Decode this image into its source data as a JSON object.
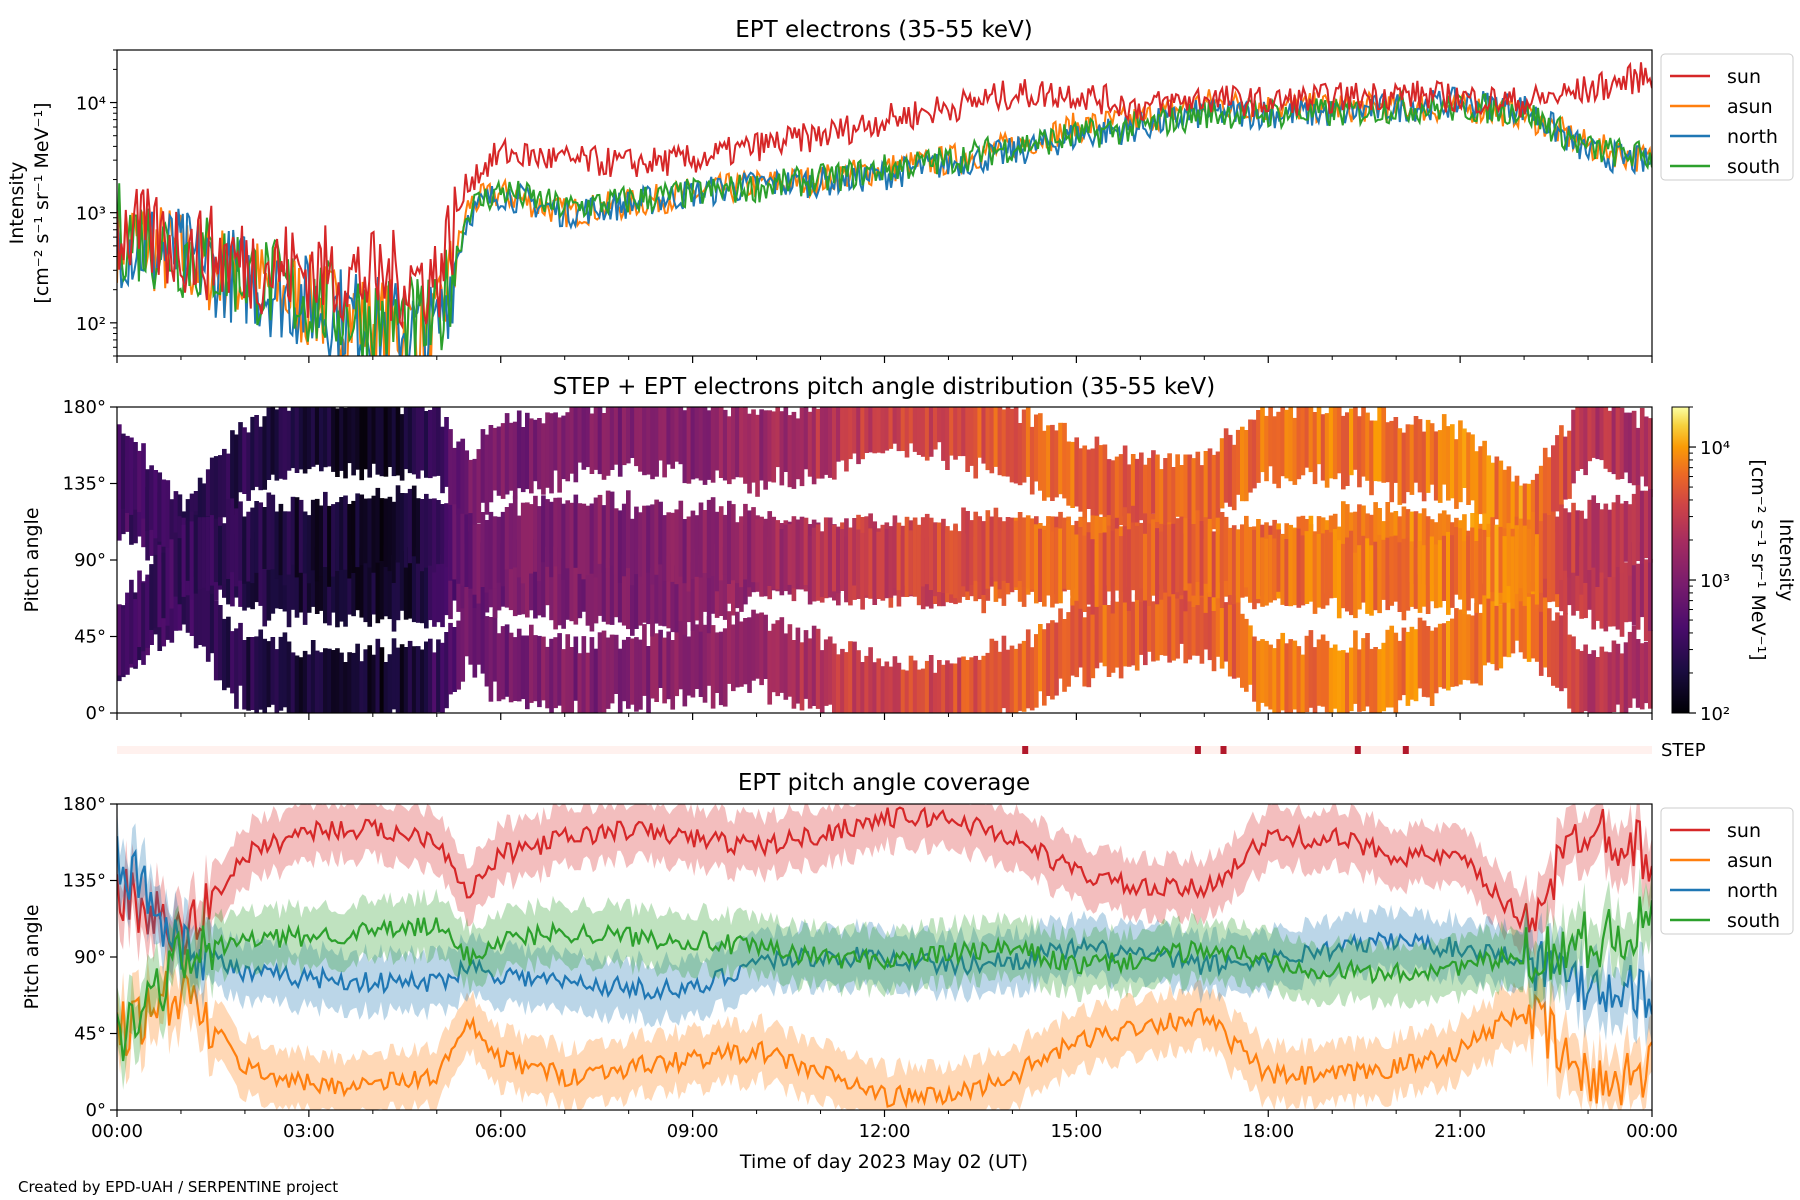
{
  "credit": "Created by EPD-UAH / SERPENTINE project",
  "colors": {
    "sun": "#d62728",
    "asun": "#ff7f0e",
    "north": "#1f77b4",
    "south": "#2ca02c",
    "step_marker": "#b2182b",
    "step_band": "#fff1ee"
  },
  "panels": {
    "intensity": {
      "title": "EPT electrons (35-55 keV)",
      "ylabel_line1": "Intensity",
      "ylabel_line2": "[cm⁻² s⁻¹ sr⁻¹ MeV⁻¹]",
      "yticks": [
        {
          "label": "10²"
        },
        {
          "label": "10³"
        },
        {
          "label": "10⁴"
        }
      ]
    },
    "pad": {
      "title": "STEP + EPT electrons pitch angle distribution (35-55 keV)",
      "ylabel": "Pitch angle",
      "yticks": [
        "0°",
        "45°",
        "90°",
        "135°",
        "180°"
      ],
      "colorbar": {
        "label_line1": "Intensity",
        "label_line2": "[cm⁻² s⁻¹ sr⁻¹ MeV⁻¹]",
        "ticks": [
          "10²",
          "10³",
          "10⁴"
        ]
      }
    },
    "step": {
      "label": "STEP"
    },
    "coverage": {
      "title": "EPT pitch angle coverage",
      "ylabel": "Pitch angle",
      "yticks": [
        "0°",
        "45°",
        "90°",
        "135°",
        "180°"
      ],
      "xlabel": "Time of day 2023 May 02 (UT)",
      "xticks": [
        "00:00",
        "03:00",
        "06:00",
        "09:00",
        "12:00",
        "15:00",
        "18:00",
        "21:00",
        "00:00"
      ]
    }
  },
  "legend": [
    {
      "key": "sun",
      "label": "sun"
    },
    {
      "key": "asun",
      "label": "asun"
    },
    {
      "key": "north",
      "label": "north"
    },
    {
      "key": "south",
      "label": "south"
    }
  ],
  "chart_data": [
    {
      "type": "line",
      "title": "EPT electrons (35-55 keV)",
      "xlabel": "",
      "ylabel": "Intensity [cm⁻² s⁻¹ sr⁻¹ MeV⁻¹]",
      "yscale": "log",
      "ylim": [
        50,
        30000
      ],
      "xlim_hours": [
        0,
        24
      ],
      "legend_position": "outside-right",
      "x_hours": [
        0,
        1,
        2,
        3,
        4,
        5,
        5.5,
        6,
        7,
        8,
        9,
        10,
        11,
        12,
        13,
        14,
        15,
        16,
        17,
        18,
        19,
        20,
        21,
        22,
        23,
        24
      ],
      "series": [
        {
          "name": "sun",
          "values": [
            700,
            500,
            350,
            300,
            250,
            250,
            2000,
            3500,
            3000,
            2800,
            3000,
            4000,
            5000,
            7000,
            9000,
            12000,
            12000,
            9000,
            11000,
            10000,
            11000,
            12000,
            11000,
            10000,
            13000,
            18000
          ]
        },
        {
          "name": "asun",
          "values": [
            650,
            400,
            250,
            150,
            100,
            80,
            1200,
            1500,
            1000,
            1200,
            1500,
            1800,
            2000,
            2500,
            3000,
            4000,
            6000,
            7000,
            10000,
            9000,
            9000,
            9000,
            9000,
            8000,
            4000,
            3000
          ]
        },
        {
          "name": "north",
          "values": [
            600,
            400,
            250,
            150,
            100,
            80,
            1000,
            1500,
            1000,
            1200,
            1500,
            1800,
            1900,
            2200,
            2800,
            3500,
            5000,
            6000,
            8000,
            8000,
            8000,
            9000,
            10000,
            9000,
            3500,
            2800
          ]
        },
        {
          "name": "south",
          "values": [
            700,
            450,
            280,
            160,
            110,
            90,
            1100,
            1600,
            1100,
            1300,
            1500,
            1700,
            2000,
            2500,
            3000,
            4000,
            5000,
            6000,
            8000,
            8000,
            8000,
            9000,
            9000,
            8500,
            3800,
            3200
          ]
        }
      ]
    },
    {
      "type": "heatmap",
      "title": "STEP + EPT electrons pitch angle distribution (35-55 keV)",
      "ylabel": "Pitch angle",
      "ylim_deg": [
        0,
        180
      ],
      "colorbar_scale": "log",
      "colorbar_range": [
        100,
        20000
      ],
      "colormap": "inferno",
      "x_hours": [
        0,
        1.5,
        3,
        4.5,
        5.5,
        7,
        8.5,
        10,
        11.5,
        13,
        14.5,
        16,
        17.5,
        19,
        20.5,
        22,
        23,
        24
      ],
      "intensity": [
        400,
        300,
        180,
        150,
        800,
        1000,
        1100,
        1500,
        3000,
        4000,
        6000,
        5000,
        6000,
        7000,
        7000,
        8000,
        2500,
        2000
      ]
    },
    {
      "type": "line",
      "title": "EPT pitch angle coverage",
      "xlabel": "Time of day 2023 May 02 (UT)",
      "ylabel": "Pitch angle",
      "ylim_deg": [
        0,
        180
      ],
      "xlim_hours": [
        0,
        24
      ],
      "band_halfwidth_deg": 17,
      "x_hours": [
        0,
        1,
        2,
        3,
        4,
        5,
        5.5,
        6,
        7,
        8,
        9,
        10,
        11,
        12,
        13,
        14,
        15,
        16,
        17,
        18,
        19,
        20,
        21,
        22,
        23,
        24
      ],
      "series": [
        {
          "name": "sun",
          "values": [
            130,
            100,
            150,
            165,
            165,
            160,
            128,
            150,
            160,
            165,
            160,
            155,
            162,
            172,
            172,
            160,
            140,
            130,
            130,
            160,
            160,
            150,
            148,
            110,
            170,
            150
          ]
        },
        {
          "name": "asun",
          "values": [
            45,
            70,
            25,
            15,
            15,
            20,
            50,
            30,
            20,
            25,
            30,
            35,
            22,
            8,
            8,
            20,
            40,
            50,
            55,
            20,
            20,
            25,
            35,
            60,
            15,
            25
          ]
        },
        {
          "name": "north",
          "values": [
            150,
            100,
            80,
            78,
            75,
            75,
            85,
            80,
            75,
            72,
            70,
            88,
            90,
            90,
            85,
            88,
            95,
            92,
            85,
            88,
            95,
            100,
            95,
            90,
            75,
            70
          ]
        },
        {
          "name": "south",
          "values": [
            40,
            90,
            100,
            102,
            105,
            108,
            90,
            100,
            105,
            102,
            100,
            95,
            90,
            88,
            92,
            95,
            85,
            88,
            95,
            88,
            82,
            80,
            85,
            90,
            100,
            110
          ]
        }
      ]
    }
  ],
  "step_marks_hours": [
    14.2,
    16.9,
    17.3,
    19.4,
    20.15
  ]
}
